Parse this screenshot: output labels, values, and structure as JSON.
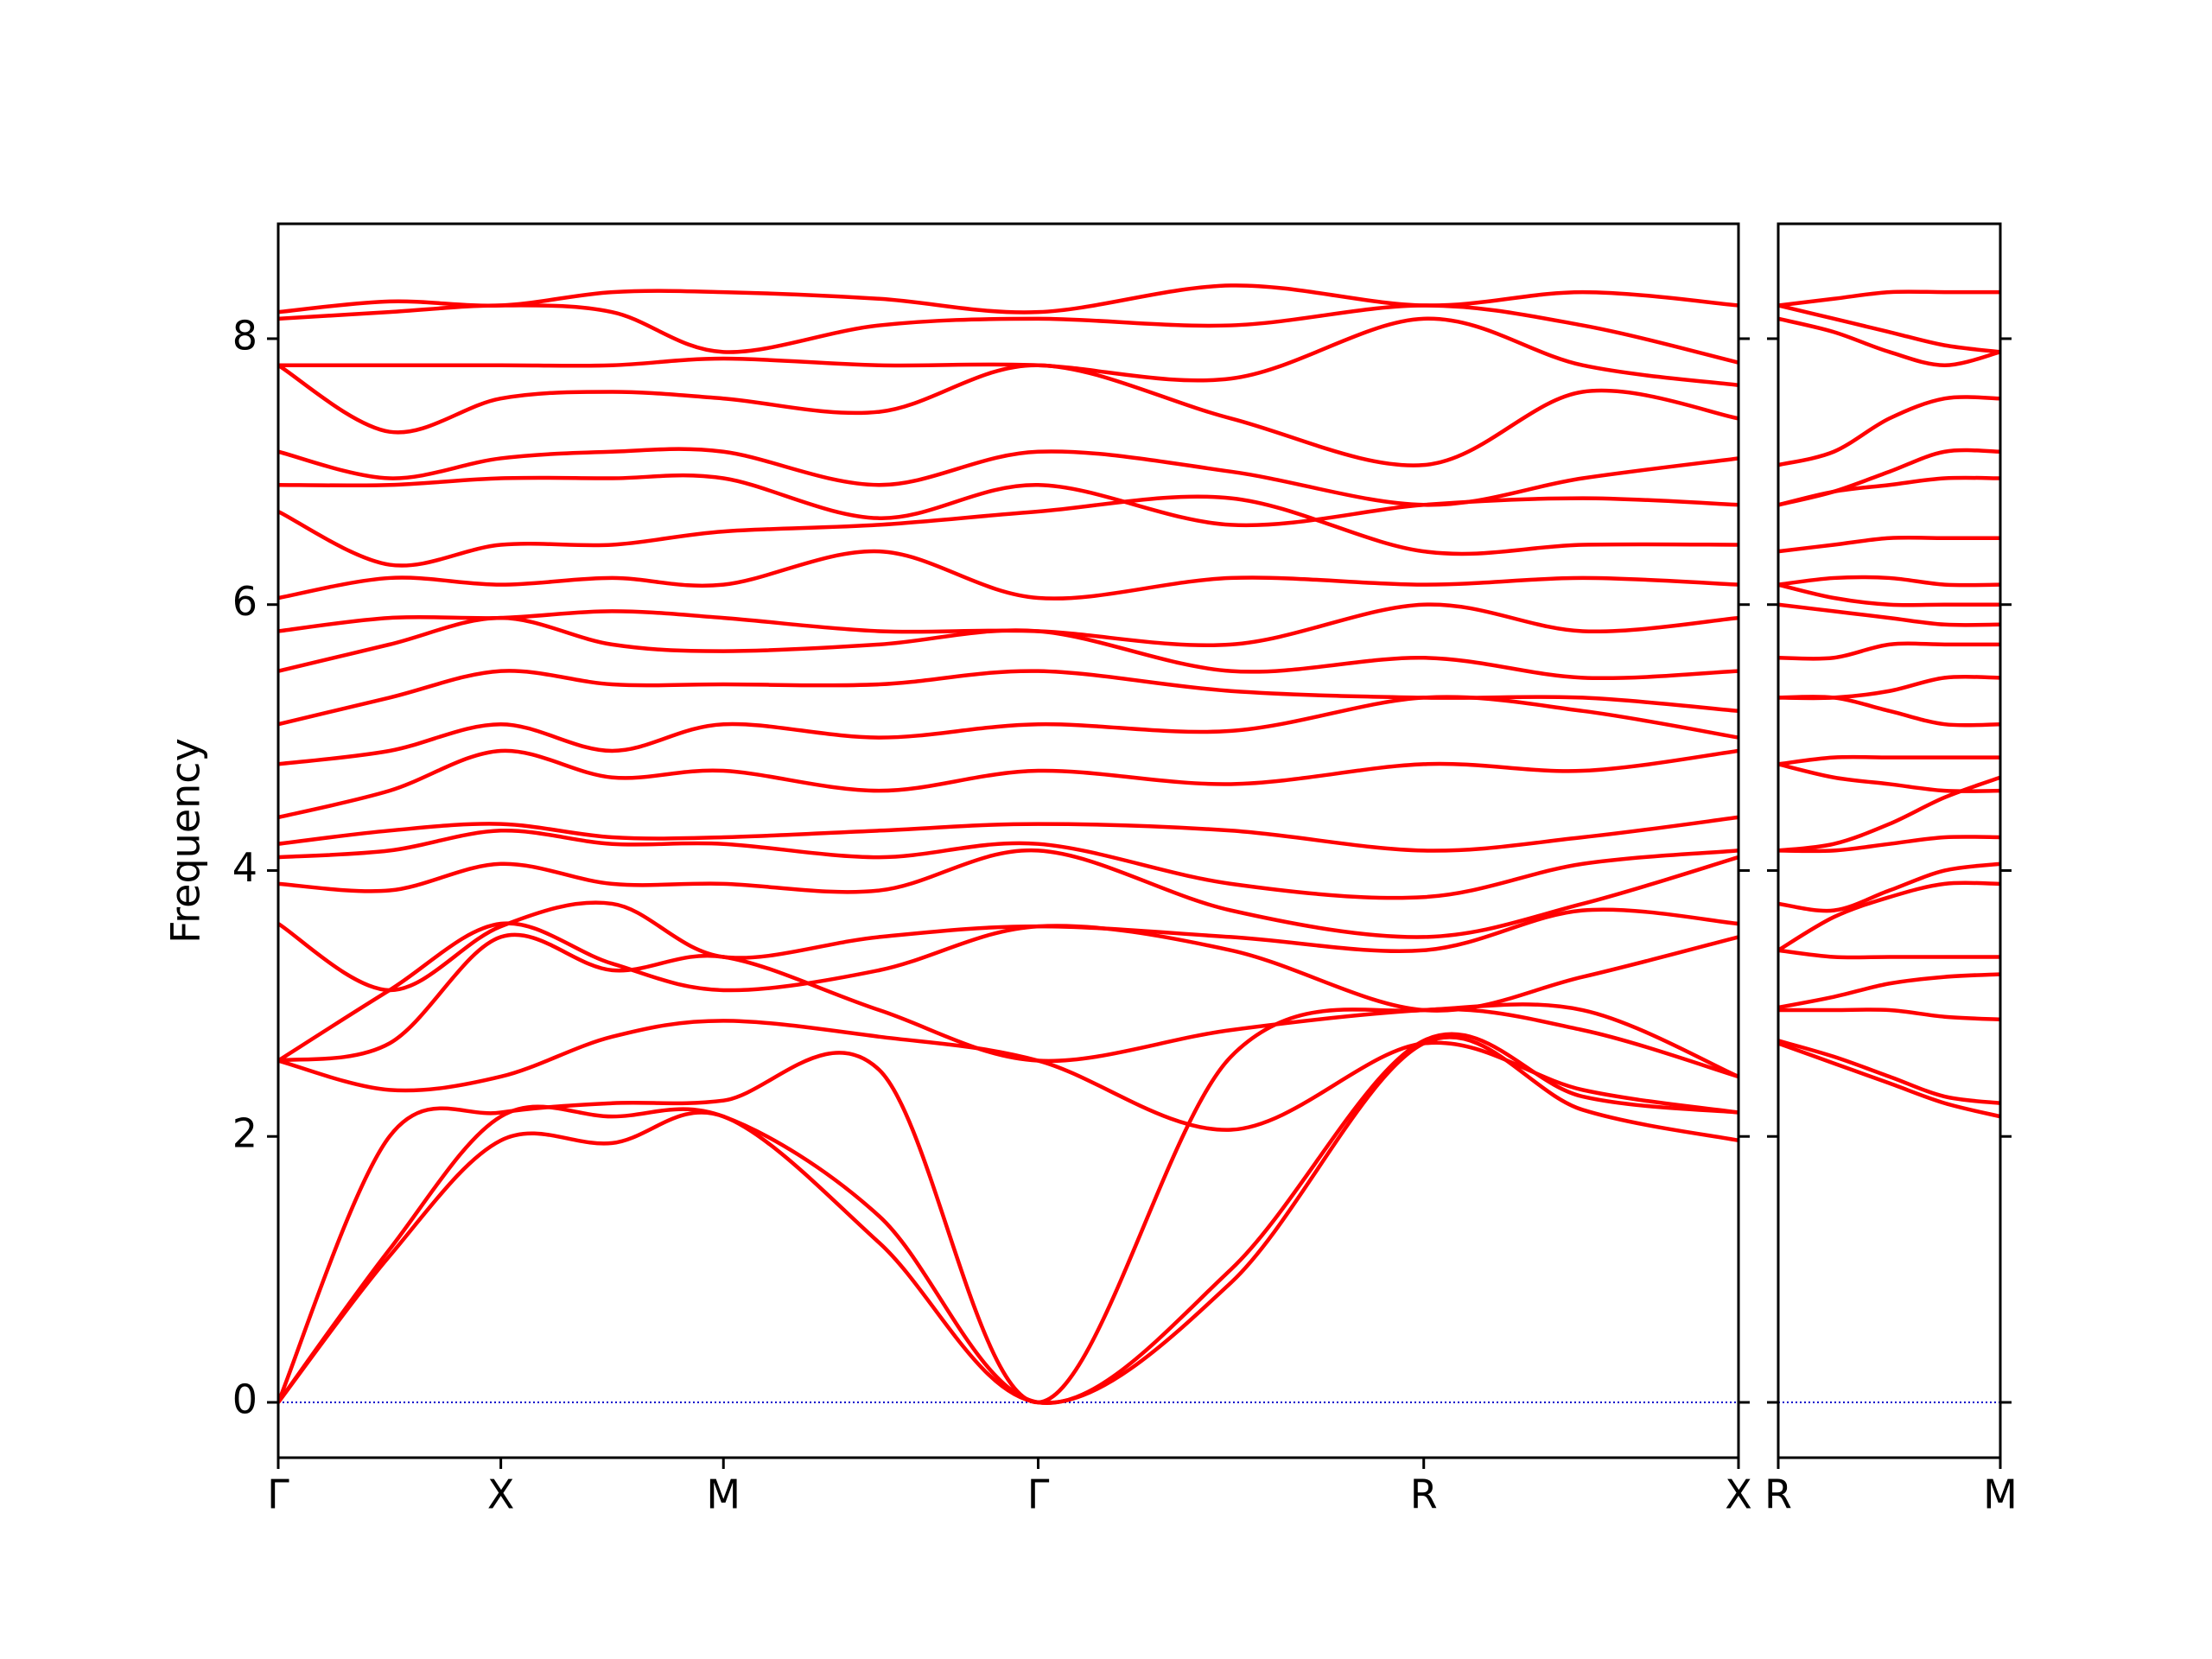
{
  "chart_data": [
    {
      "type": "line",
      "ylabel": "Frequency",
      "x": [
        0,
        0.25,
        0.5,
        0.75,
        1.0,
        1.35,
        1.707,
        2.14,
        2.573,
        2.93,
        3.28
      ],
      "xlim": [
        0,
        3.28
      ],
      "ylim": [
        -0.416,
        8.864
      ],
      "xticks": [
        {
          "value": 0,
          "label": "Γ"
        },
        {
          "value": 0.5,
          "label": "X"
        },
        {
          "value": 1.0,
          "label": "M"
        },
        {
          "value": 1.707,
          "label": "Γ"
        },
        {
          "value": 2.573,
          "label": "R"
        },
        {
          "value": 3.28,
          "label": "X"
        }
      ],
      "yticks": [
        0,
        2,
        4,
        6,
        8
      ],
      "hline": 0,
      "hline_color": "#0000cc",
      "series": [
        {
          "color": "#ff0000",
          "values": [
            0,
            1.1,
            1.97,
            1.95,
            2.15,
            1.2,
            0,
            0.9,
            2.7,
            2.2,
            1.97
          ]
        },
        {
          "color": "#ff0000",
          "values": [
            0,
            1.15,
            2.15,
            2.15,
            2.15,
            1.4,
            0,
            1.0,
            2.72,
            2.3,
            2.18
          ]
        },
        {
          "color": "#ff0000",
          "values": [
            0,
            2.0,
            2.18,
            2.25,
            2.27,
            2.5,
            0,
            2.6,
            2.95,
            2.8,
            2.45
          ]
        },
        {
          "color": "#ff0000",
          "values": [
            2.57,
            2.35,
            2.45,
            2.75,
            2.87,
            2.75,
            2.57,
            2.05,
            2.7,
            2.35,
            2.18
          ]
        },
        {
          "color": "#ff0000",
          "values": [
            2.57,
            2.7,
            3.5,
            3.25,
            3.35,
            2.95,
            2.57,
            2.8,
            2.95,
            2.95,
            2.45
          ]
        },
        {
          "color": "#ff0000",
          "values": [
            2.57,
            3.1,
            3.6,
            3.3,
            3.1,
            3.25,
            3.58,
            3.4,
            2.95,
            3.2,
            3.5
          ]
        },
        {
          "color": "#ff0000",
          "values": [
            3.6,
            3.1,
            3.58,
            3.75,
            3.35,
            3.5,
            3.58,
            3.5,
            3.4,
            3.7,
            3.6
          ]
        },
        {
          "color": "#ff0000",
          "values": [
            3.9,
            3.85,
            4.05,
            3.9,
            3.9,
            3.85,
            4.15,
            3.7,
            3.5,
            3.75,
            4.1
          ]
        },
        {
          "color": "#ff0000",
          "values": [
            4.1,
            4.15,
            4.3,
            4.2,
            4.2,
            4.1,
            4.2,
            3.9,
            3.8,
            4.05,
            4.15
          ]
        },
        {
          "color": "#ff0000",
          "values": [
            4.2,
            4.3,
            4.35,
            4.25,
            4.25,
            4.3,
            4.35,
            4.3,
            4.15,
            4.25,
            4.4
          ]
        },
        {
          "color": "#ff0000",
          "values": [
            4.4,
            4.6,
            4.9,
            4.7,
            4.75,
            4.6,
            4.75,
            4.65,
            4.8,
            4.75,
            4.9
          ]
        },
        {
          "color": "#ff0000",
          "values": [
            4.8,
            4.9,
            5.1,
            4.9,
            5.1,
            5.0,
            5.1,
            5.05,
            5.3,
            5.2,
            5.0
          ]
        },
        {
          "color": "#ff0000",
          "values": [
            5.1,
            5.3,
            5.5,
            5.4,
            5.4,
            5.4,
            5.5,
            5.35,
            5.3,
            5.3,
            5.2
          ]
        },
        {
          "color": "#ff0000",
          "values": [
            5.5,
            5.7,
            5.9,
            5.7,
            5.65,
            5.7,
            5.8,
            5.5,
            5.6,
            5.45,
            5.5
          ]
        },
        {
          "color": "#ff0000",
          "values": [
            5.8,
            5.9,
            5.9,
            5.95,
            5.9,
            5.8,
            5.8,
            5.7,
            6.0,
            5.8,
            5.9
          ]
        },
        {
          "color": "#ff0000",
          "values": [
            6.05,
            6.2,
            6.15,
            6.2,
            6.15,
            6.4,
            6.05,
            6.2,
            6.15,
            6.2,
            6.15
          ]
        },
        {
          "color": "#ff0000",
          "values": [
            6.7,
            6.3,
            6.45,
            6.45,
            6.55,
            6.6,
            6.7,
            6.8,
            6.4,
            6.45,
            6.45
          ]
        },
        {
          "color": "#ff0000",
          "values": [
            6.9,
            6.9,
            6.95,
            6.95,
            6.95,
            6.65,
            6.9,
            6.6,
            6.75,
            6.8,
            6.75
          ]
        },
        {
          "color": "#ff0000",
          "values": [
            7.15,
            6.95,
            7.1,
            7.15,
            7.15,
            6.9,
            7.15,
            7.0,
            6.75,
            6.95,
            7.1
          ]
        },
        {
          "color": "#ff0000",
          "values": [
            7.8,
            7.3,
            7.55,
            7.6,
            7.55,
            7.45,
            7.8,
            7.4,
            7.05,
            7.6,
            7.4
          ]
        },
        {
          "color": "#ff0000",
          "values": [
            7.8,
            7.8,
            7.8,
            7.8,
            7.85,
            7.8,
            7.8,
            7.7,
            8.15,
            7.8,
            7.65
          ]
        },
        {
          "color": "#ff0000",
          "values": [
            8.15,
            8.2,
            8.25,
            8.2,
            7.9,
            8.1,
            8.15,
            8.1,
            8.25,
            8.1,
            7.82
          ]
        },
        {
          "color": "#ff0000",
          "values": [
            8.2,
            8.28,
            8.25,
            8.35,
            8.35,
            8.3,
            8.2,
            8.4,
            8.25,
            8.35,
            8.25
          ]
        }
      ]
    },
    {
      "type": "line",
      "x": [
        0,
        0.177,
        0.354,
        0.53,
        0.707
      ],
      "xlim": [
        0,
        0.707
      ],
      "ylim": [
        -0.416,
        8.864
      ],
      "xticks": [
        {
          "value": 0,
          "label": "R"
        },
        {
          "value": 0.707,
          "label": "M"
        }
      ],
      "hline": 0,
      "hline_color": "#0000cc",
      "series": [
        {
          "color": "#ff0000",
          "values": [
            2.7,
            2.55,
            2.4,
            2.25,
            2.15
          ]
        },
        {
          "color": "#ff0000",
          "values": [
            2.72,
            2.6,
            2.45,
            2.3,
            2.25
          ]
        },
        {
          "color": "#ff0000",
          "values": [
            2.95,
            2.95,
            2.95,
            2.9,
            2.88
          ]
        },
        {
          "color": "#ff0000",
          "values": [
            2.97,
            3.05,
            3.15,
            3.2,
            3.22
          ]
        },
        {
          "color": "#ff0000",
          "values": [
            3.4,
            3.35,
            3.35,
            3.35,
            3.35
          ]
        },
        {
          "color": "#ff0000",
          "values": [
            3.4,
            3.65,
            3.8,
            3.9,
            3.9
          ]
        },
        {
          "color": "#ff0000",
          "values": [
            3.75,
            3.7,
            3.85,
            4.0,
            4.05
          ]
        },
        {
          "color": "#ff0000",
          "values": [
            4.15,
            4.15,
            4.2,
            4.25,
            4.25
          ]
        },
        {
          "color": "#ff0000",
          "values": [
            4.15,
            4.2,
            4.35,
            4.55,
            4.7
          ]
        },
        {
          "color": "#ff0000",
          "values": [
            4.8,
            4.85,
            4.85,
            4.85,
            4.85
          ]
        },
        {
          "color": "#ff0000",
          "values": [
            4.8,
            4.7,
            4.65,
            4.6,
            4.6
          ]
        },
        {
          "color": "#ff0000",
          "values": [
            5.3,
            5.3,
            5.2,
            5.1,
            5.1
          ]
        },
        {
          "color": "#ff0000",
          "values": [
            5.3,
            5.3,
            5.35,
            5.45,
            5.45
          ]
        },
        {
          "color": "#ff0000",
          "values": [
            5.6,
            5.6,
            5.7,
            5.7,
            5.7
          ]
        },
        {
          "color": "#ff0000",
          "values": [
            6.0,
            5.95,
            5.9,
            5.85,
            5.85
          ]
        },
        {
          "color": "#ff0000",
          "values": [
            6.15,
            6.05,
            6.0,
            6.0,
            6.0
          ]
        },
        {
          "color": "#ff0000",
          "values": [
            6.15,
            6.2,
            6.2,
            6.15,
            6.15
          ]
        },
        {
          "color": "#ff0000",
          "values": [
            6.4,
            6.45,
            6.5,
            6.5,
            6.5
          ]
        },
        {
          "color": "#ff0000",
          "values": [
            6.75,
            6.85,
            6.9,
            6.95,
            6.95
          ]
        },
        {
          "color": "#ff0000",
          "values": [
            6.75,
            6.85,
            7.0,
            7.15,
            7.15
          ]
        },
        {
          "color": "#ff0000",
          "values": [
            7.05,
            7.15,
            7.4,
            7.55,
            7.55
          ]
        },
        {
          "color": "#ff0000",
          "values": [
            8.15,
            8.05,
            7.9,
            7.8,
            7.9
          ]
        },
        {
          "color": "#ff0000",
          "values": [
            8.25,
            8.3,
            8.35,
            8.35,
            8.35
          ]
        },
        {
          "color": "#ff0000",
          "values": [
            8.25,
            8.15,
            8.05,
            7.95,
            7.9
          ]
        }
      ]
    }
  ]
}
